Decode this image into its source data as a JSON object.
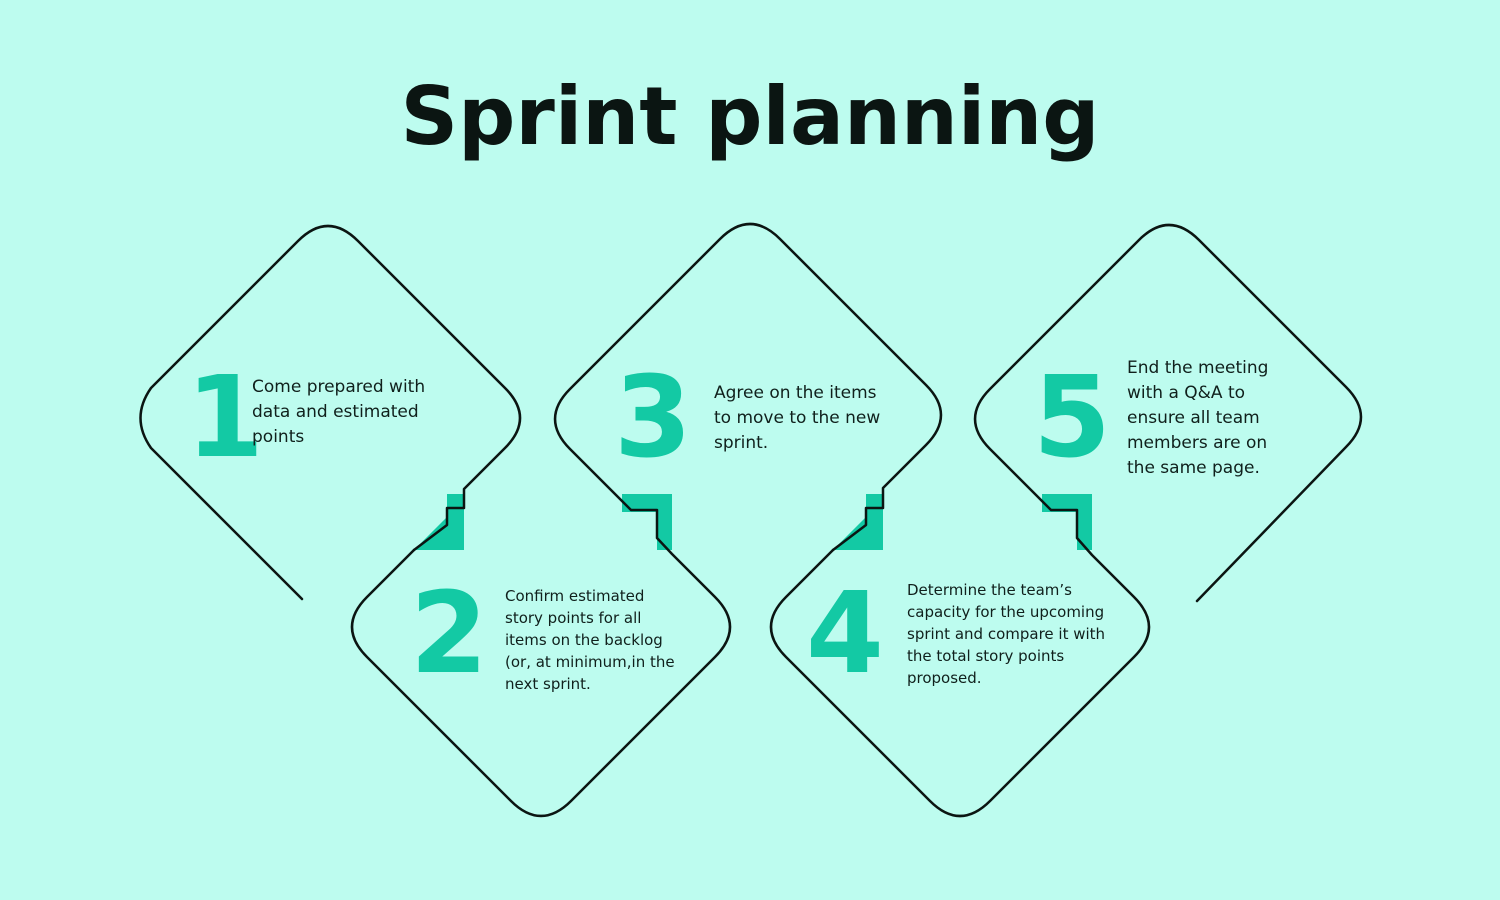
{
  "title": "Sprint planning",
  "colors": {
    "background": "#bdfcef",
    "accent": "#13c9a4",
    "outline": "#0b1512",
    "text": "#10201c"
  },
  "steps": [
    {
      "number": "1",
      "text": "Come prepared with data and estimated points"
    },
    {
      "number": "2",
      "text": "Confirm estimated story points for all items on the backlog (or, at minimum,in the next sprint."
    },
    {
      "number": "3",
      "text": "Agree on the items to move to the new sprint."
    },
    {
      "number": "4",
      "text": "Determine the team’s capacity for the upcoming sprint and compare it with the total story points proposed."
    },
    {
      "number": "5",
      "text": "End the meeting with a Q&A to ensure all team members are on the same page."
    }
  ]
}
